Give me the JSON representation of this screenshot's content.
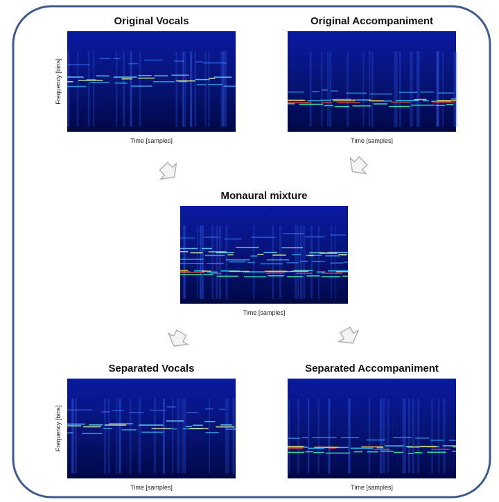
{
  "panels": [
    {
      "title": "Original Vocals",
      "xlabel": "Time [samples]",
      "ylabel": "Frequency [bins]"
    },
    {
      "title": "Original Accompaniment",
      "xlabel": "Time [samples]"
    },
    {
      "title": "Monaural mixture",
      "xlabel": "Time [samples]"
    },
    {
      "title": "Separated Vocals",
      "xlabel": "Time [samples]",
      "ylabel": "Frequency [bins]"
    },
    {
      "title": "Separated Accompaniment",
      "xlabel": "Time [samples]"
    }
  ]
}
